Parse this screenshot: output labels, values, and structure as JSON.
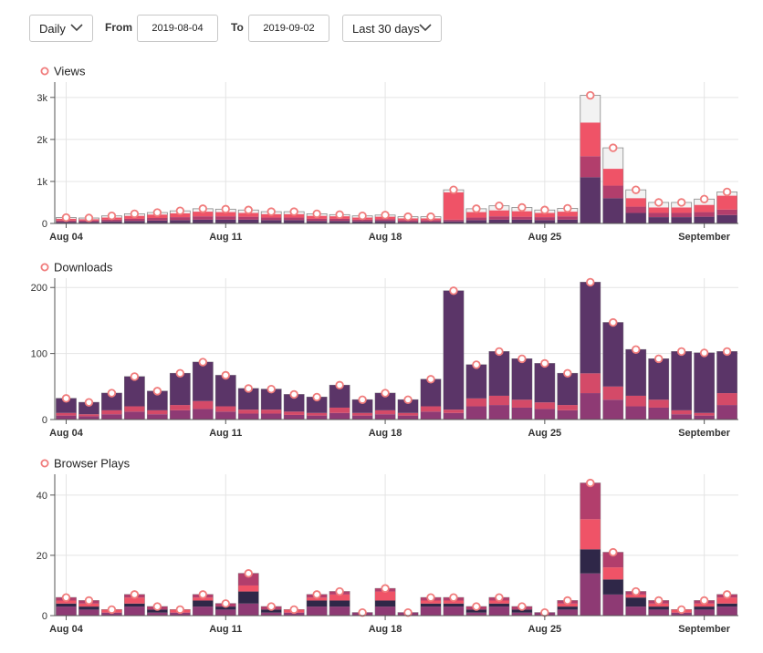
{
  "toolbar": {
    "interval": "Daily",
    "from_label": "From",
    "from_date": "2019-08-04",
    "to_label": "To",
    "to_date": "2019-09-02",
    "range": "Last 30 days"
  },
  "colors": {
    "purple_dark": "#5b3568",
    "navy": "#2f2748",
    "plum": "#8e3a74",
    "magenta": "#b23e6c",
    "rose": "#d44a68",
    "coral": "#ef5367",
    "total_marker": "#f07c7c",
    "total_box": "#f2f2f2"
  },
  "chart_data": [
    {
      "type": "bar",
      "stacked": true,
      "title": "Views",
      "x": [
        "2019-08-04",
        "2019-08-05",
        "2019-08-06",
        "2019-08-07",
        "2019-08-08",
        "2019-08-09",
        "2019-08-10",
        "2019-08-11",
        "2019-08-12",
        "2019-08-13",
        "2019-08-14",
        "2019-08-15",
        "2019-08-16",
        "2019-08-17",
        "2019-08-18",
        "2019-08-19",
        "2019-08-20",
        "2019-08-21",
        "2019-08-22",
        "2019-08-23",
        "2019-08-24",
        "2019-08-25",
        "2019-08-26",
        "2019-08-27",
        "2019-08-28",
        "2019-08-29",
        "2019-08-30",
        "2019-08-31",
        "2019-09-01",
        "2019-09-02"
      ],
      "xticks": [
        {
          "x": "2019-08-04",
          "label": "Aug 04"
        },
        {
          "x": "2019-08-11",
          "label": "Aug 11"
        },
        {
          "x": "2019-08-18",
          "label": "Aug 18"
        },
        {
          "x": "2019-08-25",
          "label": "Aug 25"
        },
        {
          "x": "2019-09-01",
          "label": "September"
        }
      ],
      "ylim": [
        0,
        3300
      ],
      "yticks": [
        {
          "v": 0,
          "label": "0"
        },
        {
          "v": 1000,
          "label": "1k"
        },
        {
          "v": 2000,
          "label": "2k"
        },
        {
          "v": 3000,
          "label": "3k"
        }
      ],
      "totals": [
        140,
        130,
        180,
        230,
        260,
        300,
        350,
        340,
        320,
        280,
        280,
        230,
        210,
        180,
        200,
        160,
        160,
        800,
        350,
        420,
        380,
        320,
        360,
        3050,
        1800,
        800,
        500,
        500,
        580,
        750
      ],
      "stack": [
        {
          "color": "#5b3568",
          "values": [
            40,
            40,
            50,
            60,
            70,
            80,
            90,
            90,
            90,
            80,
            80,
            60,
            60,
            50,
            60,
            40,
            40,
            50,
            80,
            90,
            90,
            80,
            90,
            1100,
            600,
            250,
            150,
            150,
            160,
            200
          ]
        },
        {
          "color": "#b23e6c",
          "values": [
            30,
            30,
            40,
            50,
            60,
            70,
            80,
            80,
            70,
            60,
            60,
            50,
            50,
            40,
            40,
            40,
            40,
            40,
            60,
            80,
            70,
            70,
            80,
            500,
            300,
            150,
            100,
            100,
            110,
            130
          ]
        },
        {
          "color": "#ef5367",
          "values": [
            40,
            30,
            50,
            70,
            80,
            90,
            110,
            100,
            90,
            80,
            80,
            70,
            60,
            50,
            60,
            40,
            40,
            650,
            130,
            140,
            130,
            100,
            110,
            800,
            400,
            200,
            130,
            130,
            170,
            330
          ]
        }
      ],
      "grid": true,
      "legend": "top-left"
    },
    {
      "type": "bar",
      "stacked": true,
      "title": "Downloads",
      "x": [
        "2019-08-04",
        "2019-08-05",
        "2019-08-06",
        "2019-08-07",
        "2019-08-08",
        "2019-08-09",
        "2019-08-10",
        "2019-08-11",
        "2019-08-12",
        "2019-08-13",
        "2019-08-14",
        "2019-08-15",
        "2019-08-16",
        "2019-08-17",
        "2019-08-18",
        "2019-08-19",
        "2019-08-20",
        "2019-08-21",
        "2019-08-22",
        "2019-08-23",
        "2019-08-24",
        "2019-08-25",
        "2019-08-26",
        "2019-08-27",
        "2019-08-28",
        "2019-08-29",
        "2019-08-30",
        "2019-08-31",
        "2019-09-01",
        "2019-09-02"
      ],
      "xticks": [
        {
          "x": "2019-08-04",
          "label": "Aug 04"
        },
        {
          "x": "2019-08-11",
          "label": "Aug 11"
        },
        {
          "x": "2019-08-18",
          "label": "Aug 18"
        },
        {
          "x": "2019-08-25",
          "label": "Aug 25"
        },
        {
          "x": "2019-09-01",
          "label": "September"
        }
      ],
      "ylim": [
        0,
        210
      ],
      "yticks": [
        {
          "v": 0,
          "label": "0"
        },
        {
          "v": 100,
          "label": "100"
        },
        {
          "v": 200,
          "label": "200"
        }
      ],
      "totals": [
        32,
        26,
        40,
        65,
        43,
        70,
        87,
        67,
        47,
        46,
        38,
        34,
        52,
        30,
        40,
        30,
        61,
        195,
        83,
        103,
        92,
        85,
        70,
        208,
        147,
        106,
        92,
        103,
        101,
        103
      ],
      "stack": [
        {
          "color": "#8e3a74",
          "values": [
            6,
            5,
            8,
            12,
            8,
            14,
            16,
            12,
            9,
            9,
            7,
            6,
            10,
            6,
            8,
            6,
            12,
            10,
            20,
            22,
            18,
            16,
            14,
            40,
            30,
            20,
            18,
            8,
            6,
            22
          ]
        },
        {
          "color": "#d44a68",
          "values": [
            4,
            3,
            6,
            8,
            6,
            8,
            12,
            8,
            6,
            6,
            5,
            4,
            8,
            4,
            6,
            4,
            8,
            5,
            12,
            14,
            12,
            10,
            8,
            30,
            20,
            16,
            12,
            6,
            4,
            18
          ]
        },
        {
          "color": "#5b3568",
          "values": [
            22,
            18,
            26,
            45,
            29,
            48,
            59,
            47,
            32,
            31,
            26,
            24,
            34,
            20,
            26,
            20,
            41,
            180,
            51,
            67,
            62,
            59,
            48,
            138,
            97,
            70,
            62,
            89,
            91,
            63
          ]
        }
      ],
      "grid": true,
      "legend": "top-left"
    },
    {
      "type": "bar",
      "stacked": true,
      "title": "Browser Plays",
      "x": [
        "2019-08-04",
        "2019-08-05",
        "2019-08-06",
        "2019-08-07",
        "2019-08-08",
        "2019-08-09",
        "2019-08-10",
        "2019-08-11",
        "2019-08-12",
        "2019-08-13",
        "2019-08-14",
        "2019-08-15",
        "2019-08-16",
        "2019-08-17",
        "2019-08-18",
        "2019-08-19",
        "2019-08-20",
        "2019-08-21",
        "2019-08-22",
        "2019-08-23",
        "2019-08-24",
        "2019-08-25",
        "2019-08-26",
        "2019-08-27",
        "2019-08-28",
        "2019-08-29",
        "2019-08-30",
        "2019-08-31",
        "2019-09-01",
        "2019-09-02"
      ],
      "xticks": [
        {
          "x": "2019-08-04",
          "label": "Aug 04"
        },
        {
          "x": "2019-08-11",
          "label": "Aug 11"
        },
        {
          "x": "2019-08-18",
          "label": "Aug 18"
        },
        {
          "x": "2019-08-25",
          "label": "Aug 25"
        },
        {
          "x": "2019-09-01",
          "label": "September"
        }
      ],
      "ylim": [
        0,
        46
      ],
      "yticks": [
        {
          "v": 0,
          "label": "0"
        },
        {
          "v": 20,
          "label": "20"
        },
        {
          "v": 40,
          "label": "40"
        }
      ],
      "totals": [
        6,
        5,
        2,
        7,
        3,
        2,
        7,
        4,
        14,
        3,
        2,
        7,
        8,
        1,
        9,
        1,
        6,
        6,
        3,
        6,
        3,
        1,
        5,
        44,
        21,
        8,
        5,
        2,
        5,
        7
      ],
      "stack": [
        {
          "color": "#8e3a74",
          "values": [
            3,
            2,
            1,
            3,
            1,
            1,
            3,
            2,
            4,
            1,
            1,
            3,
            3,
            1,
            3,
            1,
            3,
            3,
            1,
            3,
            1,
            1,
            2,
            14,
            7,
            3,
            2,
            1,
            2,
            3
          ]
        },
        {
          "color": "#2f2748",
          "values": [
            1,
            1,
            0,
            1,
            1,
            0,
            2,
            1,
            4,
            1,
            0,
            2,
            2,
            0,
            2,
            0,
            1,
            1,
            1,
            1,
            1,
            0,
            1,
            8,
            5,
            3,
            1,
            0,
            1,
            1
          ]
        },
        {
          "color": "#ef5367",
          "values": [
            1,
            1,
            1,
            2,
            0,
            1,
            1,
            0,
            2,
            0,
            1,
            1,
            2,
            0,
            3,
            0,
            1,
            1,
            0,
            1,
            0,
            0,
            1,
            10,
            4,
            1,
            1,
            1,
            1,
            2
          ]
        },
        {
          "color": "#b23e6c",
          "values": [
            1,
            1,
            0,
            1,
            1,
            0,
            1,
            1,
            4,
            1,
            0,
            1,
            1,
            0,
            1,
            0,
            1,
            1,
            1,
            1,
            1,
            0,
            1,
            12,
            5,
            1,
            1,
            0,
            1,
            1
          ]
        }
      ],
      "grid": true,
      "legend": "top-left"
    }
  ]
}
